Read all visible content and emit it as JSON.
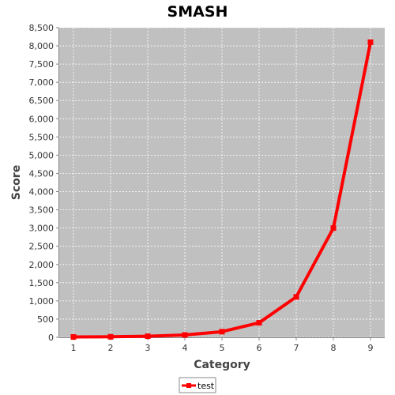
{
  "chart_data": {
    "type": "line",
    "title": "SMASH",
    "xlabel": "Category",
    "ylabel": "Score",
    "categories": [
      "1",
      "2",
      "3",
      "4",
      "5",
      "6",
      "7",
      "8",
      "9"
    ],
    "ylim": [
      0,
      8500
    ],
    "yticks": [
      0,
      500,
      1000,
      1500,
      2000,
      2500,
      3000,
      3500,
      4000,
      4500,
      5000,
      5500,
      6000,
      6500,
      7000,
      7500,
      8000,
      8500
    ],
    "ytick_labels": [
      "0",
      "500",
      "1,000",
      "1,500",
      "2,000",
      "2,500",
      "3,000",
      "3,500",
      "4,000",
      "4,500",
      "5,000",
      "5,500",
      "6,000",
      "6,500",
      "7,000",
      "7,500",
      "8,000",
      "8,500"
    ],
    "grid": true,
    "legend": "bottom",
    "series": [
      {
        "name": "test",
        "color": "#ff0000",
        "values": [
          10,
          15,
          30,
          65,
          155,
          400,
          1110,
          3000,
          8100
        ]
      }
    ],
    "plot_background": "#c0c0c0"
  }
}
